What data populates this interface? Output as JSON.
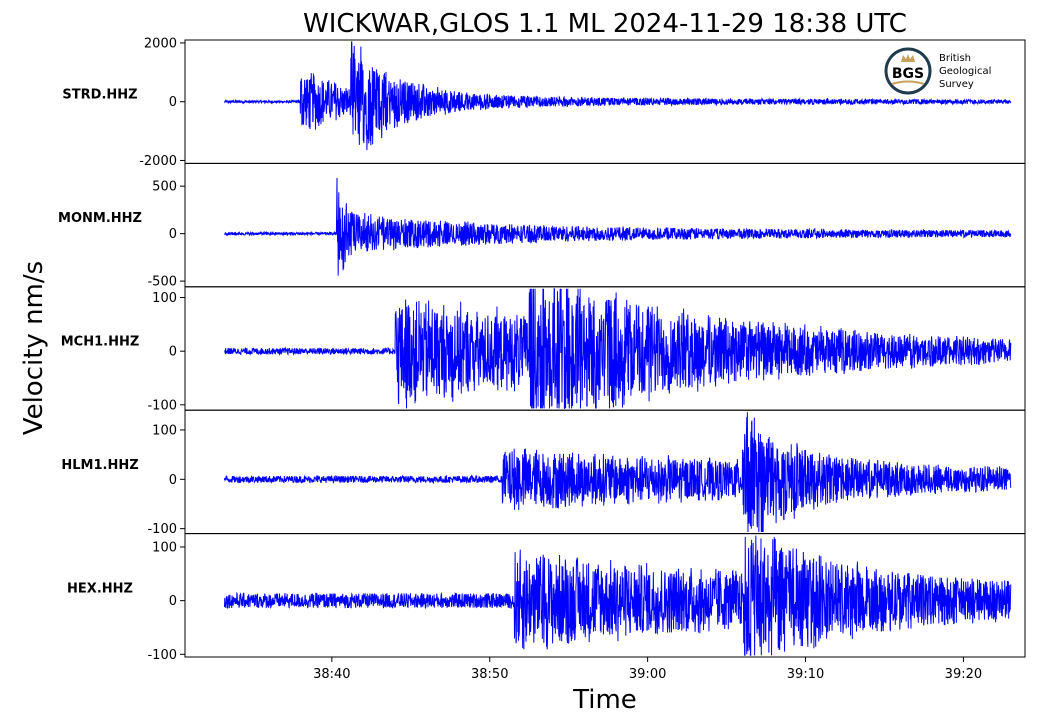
{
  "title": "WICKWAR,GLOS 1.1 ML   2024-11-29 18:38 UTC",
  "logo": {
    "initials": "BGS",
    "lines": [
      "British",
      "Geological",
      "Survey"
    ],
    "ring_color": "#1f3b4d",
    "accent_color": "#c8a15a"
  },
  "chart_data": {
    "type": "line",
    "title": "WICKWAR,GLOS 1.1 ML   2024-11-29 18:38 UTC",
    "xlabel": "Time",
    "ylabel": "Velocity nm/s",
    "x_ticks": [
      "38:40",
      "38:50",
      "39:00",
      "39:10",
      "39:20"
    ],
    "x_tick_seconds": [
      40,
      50,
      60,
      70,
      80
    ],
    "x_axis_unit": "seconds after 18:38:00 UTC",
    "xlim": [
      30.7,
      83.9
    ],
    "data_start": 33.2,
    "data_end": 83.0,
    "grid": false,
    "line_color": "#0000ff",
    "series": [
      {
        "name": "STRD.HHZ",
        "ylim": [
          -2100,
          2100
        ],
        "yticks": [
          2000,
          0,
          -2000
        ],
        "ytick_labels": [
          "2000",
          "0",
          "-2000"
        ],
        "noise": 40,
        "onsets": [
          {
            "t": 38.0,
            "peak": 1200,
            "decay": 2.5
          },
          {
            "t": 41.2,
            "peak": 2000,
            "decay": 3.0
          }
        ],
        "coda_level": 200,
        "coda_decay": 25
      },
      {
        "name": "MONM.HHZ",
        "ylim": [
          -560,
          740
        ],
        "yticks": [
          500,
          0,
          -500
        ],
        "ytick_labels": [
          "500",
          "0",
          "-500"
        ],
        "noise": 15,
        "onsets": [
          {
            "t": 40.3,
            "peak": 700,
            "decay": 0.4
          },
          {
            "t": 40.6,
            "peak": 150,
            "decay": 8
          }
        ],
        "coda_level": 80,
        "coda_decay": 30
      },
      {
        "name": "MCH1.HHZ",
        "ylim": [
          -110,
          120
        ],
        "yticks": [
          100,
          0,
          -100
        ],
        "ytick_labels": [
          "100",
          "0",
          "-100"
        ],
        "noise": 6,
        "onsets": [
          {
            "t": 44.0,
            "peak": 95,
            "decay": 15
          },
          {
            "t": 52.5,
            "peak": 110,
            "decay": 10
          }
        ],
        "coda_level": 20,
        "coda_decay": 40
      },
      {
        "name": "HLM1.HHZ",
        "ylim": [
          -110,
          140
        ],
        "yticks": [
          100,
          0,
          -100
        ],
        "ytick_labels": [
          "100",
          "0",
          "-100"
        ],
        "noise": 7,
        "onsets": [
          {
            "t": 50.8,
            "peak": 45,
            "decay": 20
          },
          {
            "t": 66.0,
            "peak": 130,
            "decay": 3
          }
        ],
        "coda_level": 20,
        "coda_decay": 50
      },
      {
        "name": "HEX.HHZ",
        "ylim": [
          -105,
          125
        ],
        "yticks": [
          100,
          0,
          -100
        ],
        "ytick_labels": [
          "100",
          "0",
          "-100"
        ],
        "noise": 14,
        "onsets": [
          {
            "t": 51.5,
            "peak": 65,
            "decay": 15
          },
          {
            "t": 66.0,
            "peak": 120,
            "decay": 5
          }
        ],
        "coda_level": 25,
        "coda_decay": 60
      }
    ]
  }
}
